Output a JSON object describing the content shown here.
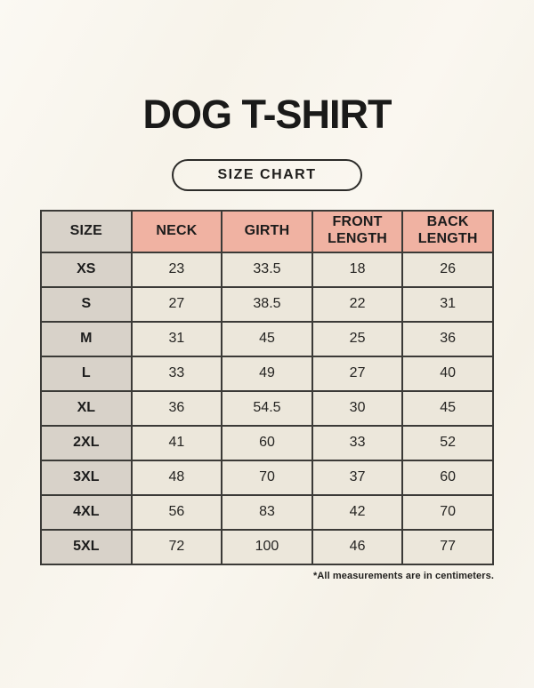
{
  "page": {
    "title": "DOG T-SHIRT",
    "size_chart_label": "SIZE CHART",
    "footnote": "*All measurements are in centimeters."
  },
  "colors": {
    "background": "#f7f4ec",
    "header_pink": "#f0b2a2",
    "header_gray": "#d8d2c9",
    "cell_cream": "#ece7db",
    "border": "#3b3a37",
    "text": "#1c1c1c"
  },
  "chart_data": {
    "type": "table",
    "title": "DOG T-SHIRT",
    "subtitle": "SIZE CHART",
    "units": "centimeters",
    "columns": [
      "SIZE",
      "NECK",
      "GIRTH",
      "FRONT LENGTH",
      "BACK LENGTH"
    ],
    "rows": [
      [
        "XS",
        "23",
        "33.5",
        "18",
        "26"
      ],
      [
        "S",
        "27",
        "38.5",
        "22",
        "31"
      ],
      [
        "M",
        "31",
        "45",
        "25",
        "36"
      ],
      [
        "L",
        "33",
        "49",
        "27",
        "40"
      ],
      [
        "XL",
        "36",
        "54.5",
        "30",
        "45"
      ],
      [
        "2XL",
        "41",
        "60",
        "33",
        "52"
      ],
      [
        "3XL",
        "48",
        "70",
        "37",
        "60"
      ],
      [
        "4XL",
        "56",
        "83",
        "42",
        "70"
      ],
      [
        "5XL",
        "72",
        "100",
        "46",
        "77"
      ]
    ]
  }
}
